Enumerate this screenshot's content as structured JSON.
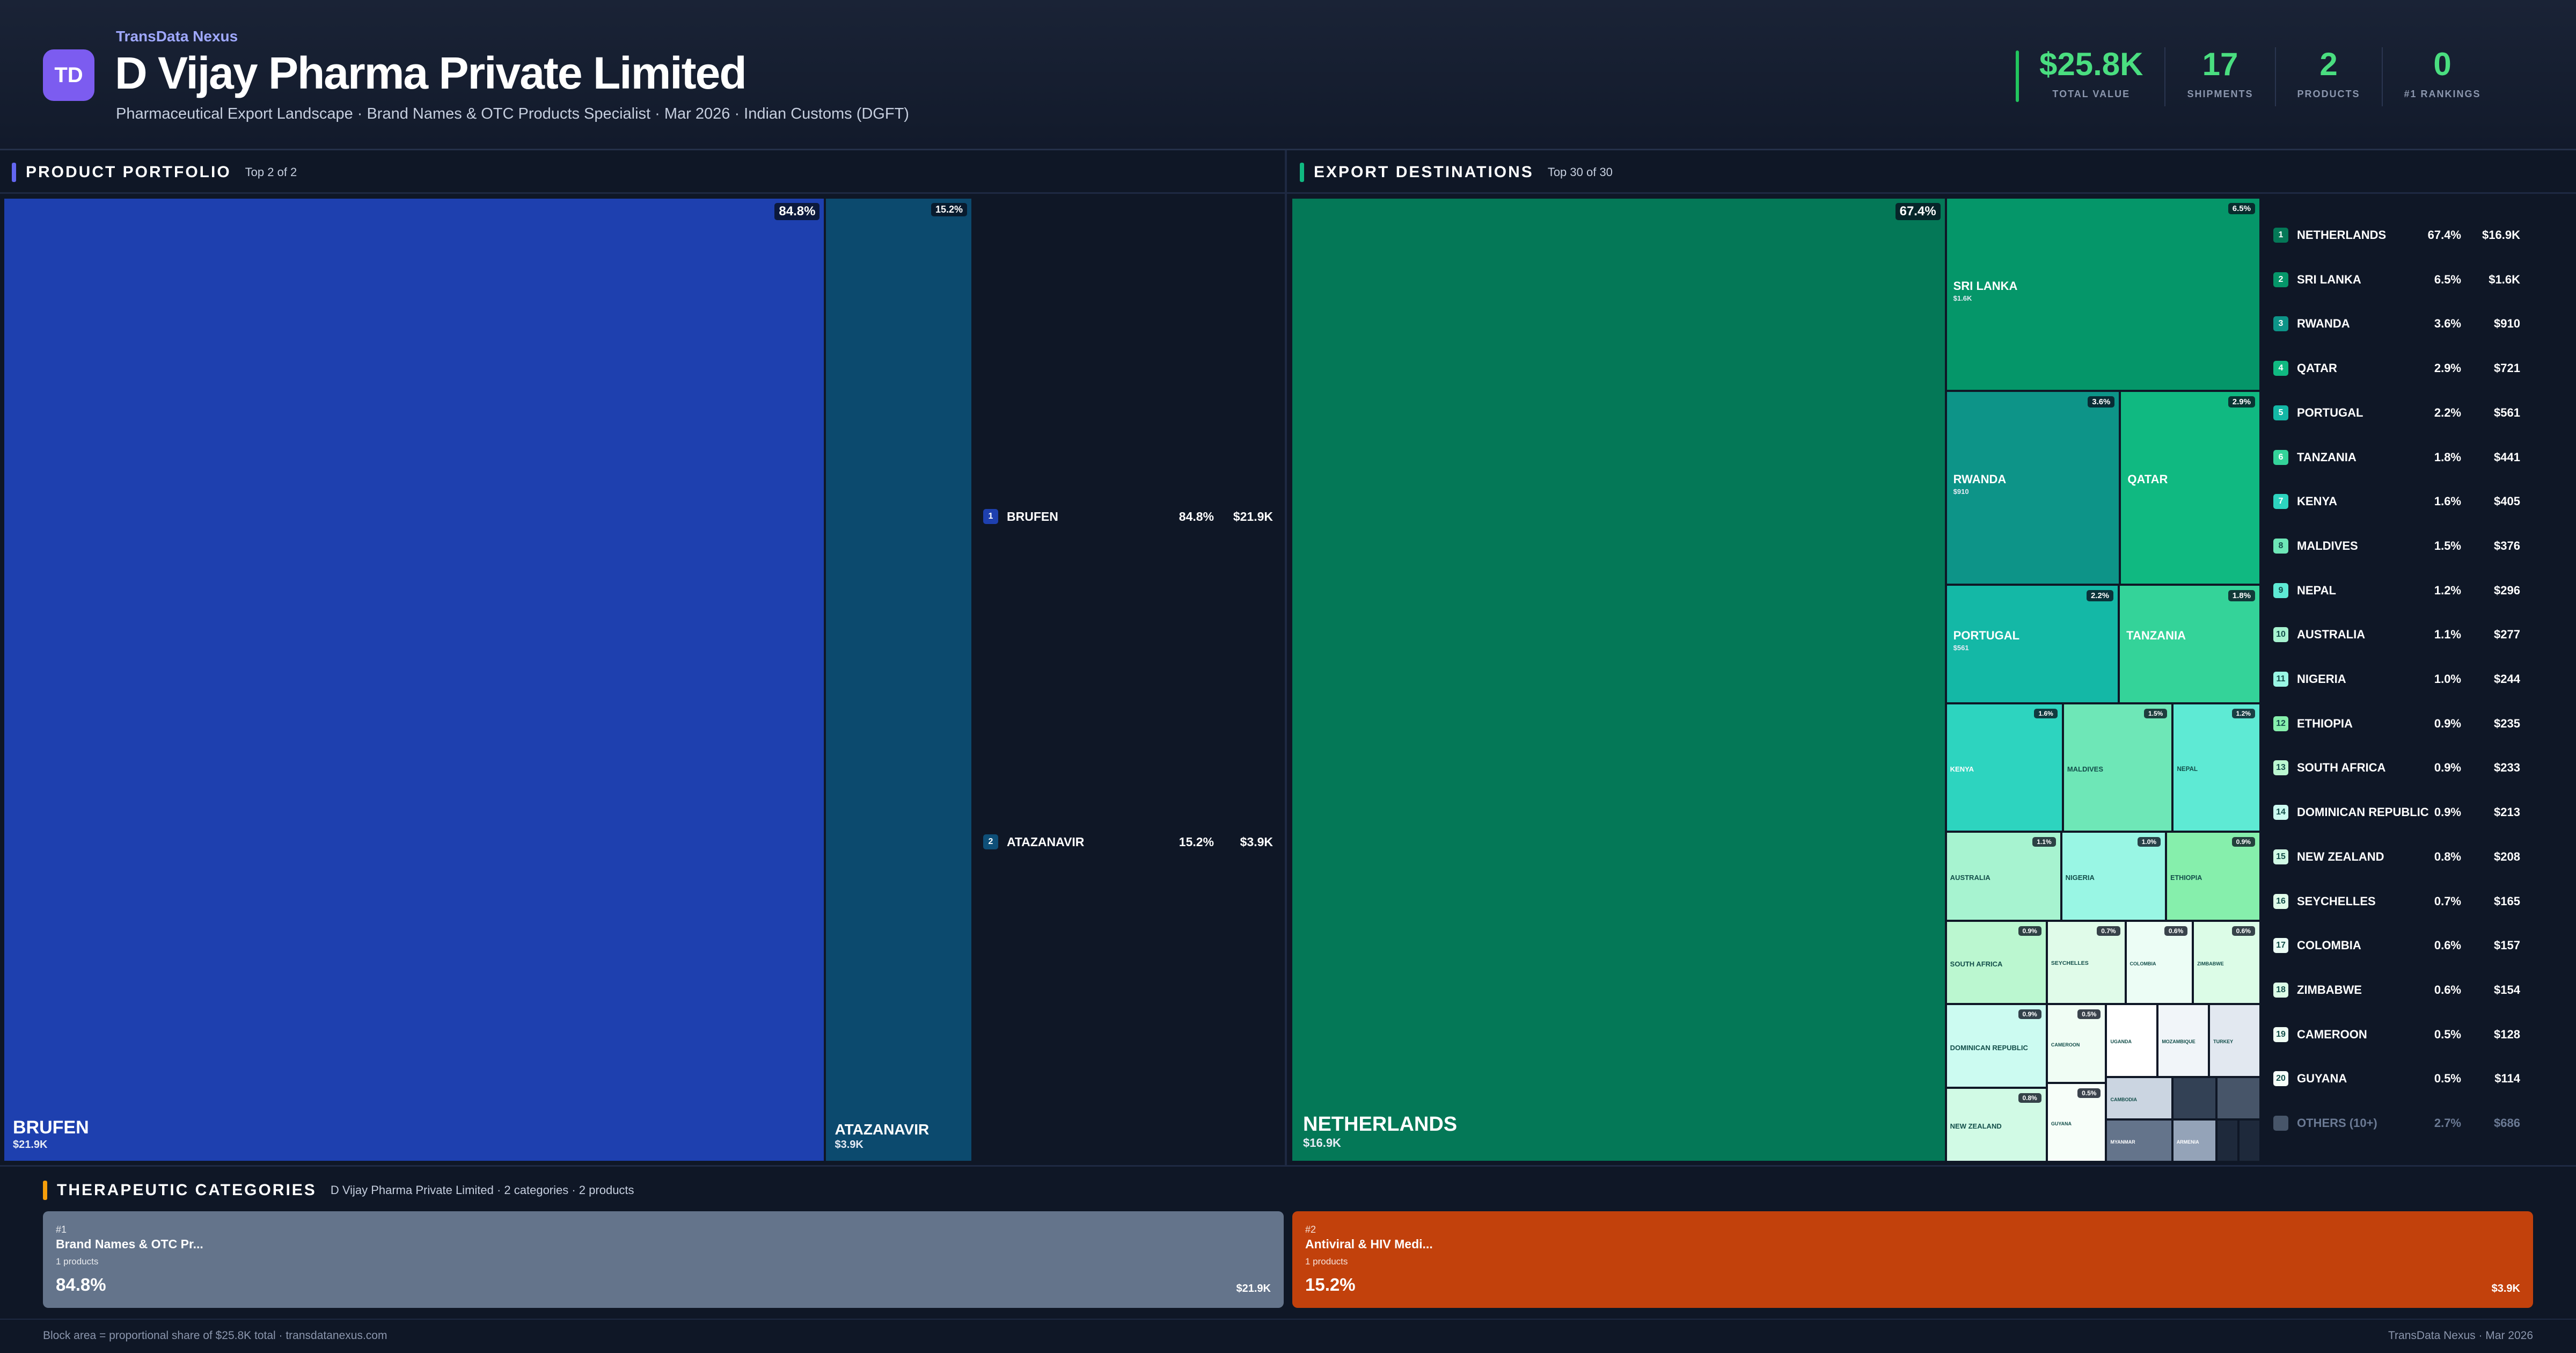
{
  "header": {
    "brand": "TransData Nexus",
    "logo_text": "TD",
    "company": "D Vijay Pharma Private Limited",
    "subtitle": "Pharmaceutical Export Landscape · Brand Names & OTC Products Specialist · Mar 2026 · Indian Customs (DGFT)",
    "kpis": [
      {
        "value": "$25.8K",
        "label": "TOTAL VALUE"
      },
      {
        "value": "17",
        "label": "SHIPMENTS"
      },
      {
        "value": "2",
        "label": "PRODUCTS"
      },
      {
        "value": "0",
        "label": "#1 RANKINGS"
      }
    ]
  },
  "products_panel": {
    "title": "PRODUCT PORTFOLIO",
    "subtitle": "Top 2 of 2"
  },
  "destinations_panel": {
    "title": "EXPORT DESTINATIONS",
    "subtitle": "Top 30 of 30"
  },
  "categories_panel": {
    "title": "THERAPEUTIC CATEGORIES",
    "subtitle": "D Vijay Pharma Private Limited · 2 categories · 2 products"
  },
  "chart_data": [
    {
      "type": "treemap",
      "name": "products",
      "items": [
        {
          "rank": "1",
          "name": "BRUFEN",
          "share": 84.8,
          "share_label": "84.8%",
          "value_label": "$21.9K",
          "color": "#1e40af"
        },
        {
          "rank": "2",
          "name": "ATAZANAVIR",
          "share": 15.2,
          "share_label": "15.2%",
          "value_label": "$3.9K",
          "color": "#0c4a6e"
        }
      ]
    },
    {
      "type": "treemap",
      "name": "destinations",
      "items": [
        {
          "rank": "1",
          "name": "NETHERLANDS",
          "share": 67.4,
          "share_label": "67.4%",
          "value_label": "$16.9K",
          "color": "#047857"
        },
        {
          "rank": "2",
          "name": "SRI LANKA",
          "share": 6.5,
          "share_label": "6.5%",
          "value_label": "$1.6K",
          "color": "#059669"
        },
        {
          "rank": "3",
          "name": "RWANDA",
          "share": 3.6,
          "share_label": "3.6%",
          "value_label": "$910",
          "color": "#0d9488"
        },
        {
          "rank": "4",
          "name": "QATAR",
          "share": 2.9,
          "share_label": "2.9%",
          "value_label": "$721",
          "color": "#10b981"
        },
        {
          "rank": "5",
          "name": "PORTUGAL",
          "share": 2.2,
          "share_label": "2.2%",
          "value_label": "$561",
          "color": "#14b8a6"
        },
        {
          "rank": "6",
          "name": "TANZANIA",
          "share": 1.8,
          "share_label": "1.8%",
          "value_label": "$441",
          "color": "#34d399"
        },
        {
          "rank": "7",
          "name": "KENYA",
          "share": 1.6,
          "share_label": "1.6%",
          "value_label": "$405",
          "color": "#2dd4bf"
        },
        {
          "rank": "8",
          "name": "MALDIVES",
          "share": 1.5,
          "share_label": "1.5%",
          "value_label": "$376",
          "color": "#6ee7b7"
        },
        {
          "rank": "9",
          "name": "NEPAL",
          "share": 1.2,
          "share_label": "1.2%",
          "value_label": "$296",
          "color": "#5eead4"
        },
        {
          "rank": "10",
          "name": "AUSTRALIA",
          "share": 1.1,
          "share_label": "1.1%",
          "value_label": "$277",
          "color": "#a7f3d0"
        },
        {
          "rank": "11",
          "name": "NIGERIA",
          "share": 1.0,
          "share_label": "1.0%",
          "value_label": "$244",
          "color": "#99f6e4"
        },
        {
          "rank": "12",
          "name": "ETHIOPIA",
          "share": 0.9,
          "share_label": "0.9%",
          "value_label": "$235",
          "color": "#86efac"
        },
        {
          "rank": "13",
          "name": "SOUTH AFRICA",
          "share": 0.9,
          "share_label": "0.9%",
          "value_label": "$233",
          "color": "#bbf7d0"
        },
        {
          "rank": "14",
          "name": "DOMINICAN REPUBLIC",
          "share": 0.9,
          "share_label": "0.9%",
          "value_label": "$213",
          "color": "#ccfbf1"
        },
        {
          "rank": "15",
          "name": "NEW ZEALAND",
          "share": 0.8,
          "share_label": "0.8%",
          "value_label": "$208",
          "color": "#d1fae5"
        },
        {
          "rank": "16",
          "name": "SEYCHELLES",
          "share": 0.7,
          "share_label": "0.7%",
          "value_label": "$165",
          "color": "#e0fbe9"
        },
        {
          "rank": "17",
          "name": "COLOMBIA",
          "share": 0.6,
          "share_label": "0.6%",
          "value_label": "$157",
          "color": "#ecfdf5"
        },
        {
          "rank": "18",
          "name": "ZIMBABWE",
          "share": 0.6,
          "share_label": "0.6%",
          "value_label": "$154",
          "color": "#dcfce7"
        },
        {
          "rank": "19",
          "name": "CAMEROON",
          "share": 0.5,
          "share_label": "0.5%",
          "value_label": "$128",
          "color": "#f0fdf4"
        },
        {
          "rank": "20",
          "name": "GUYANA",
          "share": 0.5,
          "share_label": "0.5%",
          "value_label": "$114",
          "color": "#f7fef9"
        },
        {
          "rank": "",
          "name": "UGANDA",
          "share": 0.4,
          "share_label": "",
          "value_label": "",
          "color": "#ffffff"
        },
        {
          "rank": "",
          "name": "MOZAMBIQUE",
          "share": 0.4,
          "share_label": "",
          "value_label": "",
          "color": "#f1f5f9"
        },
        {
          "rank": "",
          "name": "TURKEY",
          "share": 0.4,
          "share_label": "",
          "value_label": "",
          "color": "#e2e8f0"
        },
        {
          "rank": "",
          "name": "CAMBODIA",
          "share": 0.3,
          "share_label": "",
          "value_label": "",
          "color": "#cbd5e1"
        },
        {
          "rank": "",
          "name": "MYANMAR",
          "share": 0.3,
          "share_label": "",
          "value_label": "",
          "color": "#64748b"
        },
        {
          "rank": "",
          "name": "",
          "share": 0.2,
          "share_label": "",
          "value_label": "",
          "color": "#334155"
        },
        {
          "rank": "",
          "name": "ARMENIA",
          "share": 0.2,
          "share_label": "",
          "value_label": "",
          "color": "#94a3b8"
        },
        {
          "rank": "",
          "name": "",
          "share": 0.2,
          "share_label": "",
          "value_label": "",
          "color": "#475569"
        },
        {
          "rank": "",
          "name": "",
          "share": 0.1,
          "share_label": "",
          "value_label": "",
          "color": "#1e293b"
        },
        {
          "rank": "",
          "name": "",
          "share": 0.1,
          "share_label": "",
          "value_label": "",
          "color": "#1e293b"
        }
      ],
      "others": {
        "name": "OTHERS (10+)",
        "share_label": "2.7%",
        "value_label": "$686",
        "color": "#475569"
      }
    },
    {
      "type": "bar",
      "name": "therapeutic_categories",
      "items": [
        {
          "rank": "#1",
          "name": "Brand Names & OTC Pr...",
          "count": "1 products",
          "share": 84.8,
          "share_label": "84.8%",
          "value_label": "$21.9K",
          "color": "#64748b"
        },
        {
          "rank": "#2",
          "name": "Antiviral & HIV Medi...",
          "count": "1 products",
          "share": 15.2,
          "share_label": "15.2%",
          "value_label": "$3.9K",
          "color": "#c2410c"
        }
      ]
    }
  ],
  "footer": {
    "left": "Block area = proportional share of $25.8K total · transdatanexus.com",
    "right": "TransData Nexus · Mar 2026"
  }
}
